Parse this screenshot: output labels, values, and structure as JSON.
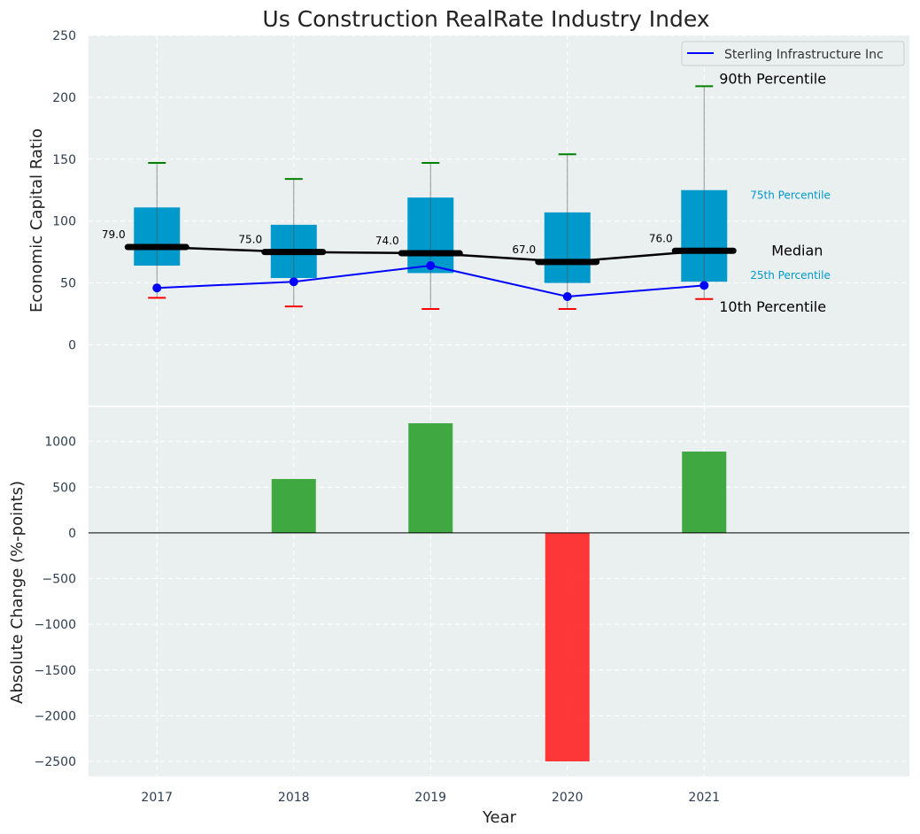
{
  "chart_data": [
    {
      "type": "box",
      "title": "Us Construction RealRate Industry Index",
      "ylabel": "Economic Capital Ratio",
      "xlabel": "",
      "categories": [
        "2017",
        "2018",
        "2019",
        "2020",
        "2021"
      ],
      "x": [
        2017,
        2018,
        2019,
        2020,
        2021
      ],
      "xlim": [
        2016.5,
        2022.5
      ],
      "ylim": [
        -49,
        250
      ],
      "yticks": [
        0,
        50,
        100,
        150,
        200,
        250
      ],
      "p90": [
        147,
        134,
        147,
        154,
        209
      ],
      "p75": [
        111,
        97,
        119,
        107,
        125
      ],
      "median": [
        79,
        75,
        74,
        67,
        76
      ],
      "median_labels": [
        "79.0",
        "75.0",
        "74.0",
        "67.0",
        "76.0"
      ],
      "p25": [
        64,
        54,
        58,
        50,
        51
      ],
      "p10": [
        38,
        31,
        29,
        29,
        37
      ],
      "series": [
        {
          "name": "Sterling Infrastructure Inc",
          "values": [
            46,
            51,
            64,
            39,
            48
          ],
          "color": "#0000ff"
        }
      ],
      "legend": {
        "placement": "top-right",
        "entries": [
          "Sterling Infrastructure Inc"
        ]
      },
      "annotations": {
        "p90": "90th Percentile",
        "p75": "75th Percentile",
        "median": "Median",
        "p25": "25th Percentile",
        "p10": "10th Percentile"
      },
      "colors": {
        "box": "#0099cc",
        "p90": "#008000",
        "p10": "#ff0000",
        "median": "#000000",
        "bg": "#eaeff0"
      },
      "grid": true
    },
    {
      "type": "bar",
      "xlabel": "Year",
      "ylabel": "Absolute Change (%-points)",
      "categories": [
        "2017",
        "2018",
        "2019",
        "2020",
        "2021"
      ],
      "x": [
        2017,
        2018,
        2019,
        2020,
        2021
      ],
      "values": [
        0,
        590,
        1200,
        -2500,
        890
      ],
      "xlim": [
        2016.5,
        2022.5
      ],
      "ylim": [
        -2665,
        1375
      ],
      "yticks": [
        -2500,
        -2000,
        -1500,
        -1000,
        -500,
        0,
        500,
        1000
      ],
      "colors": {
        "positive": "#2ca02c",
        "negative": "#ff2222"
      },
      "grid": true
    }
  ]
}
